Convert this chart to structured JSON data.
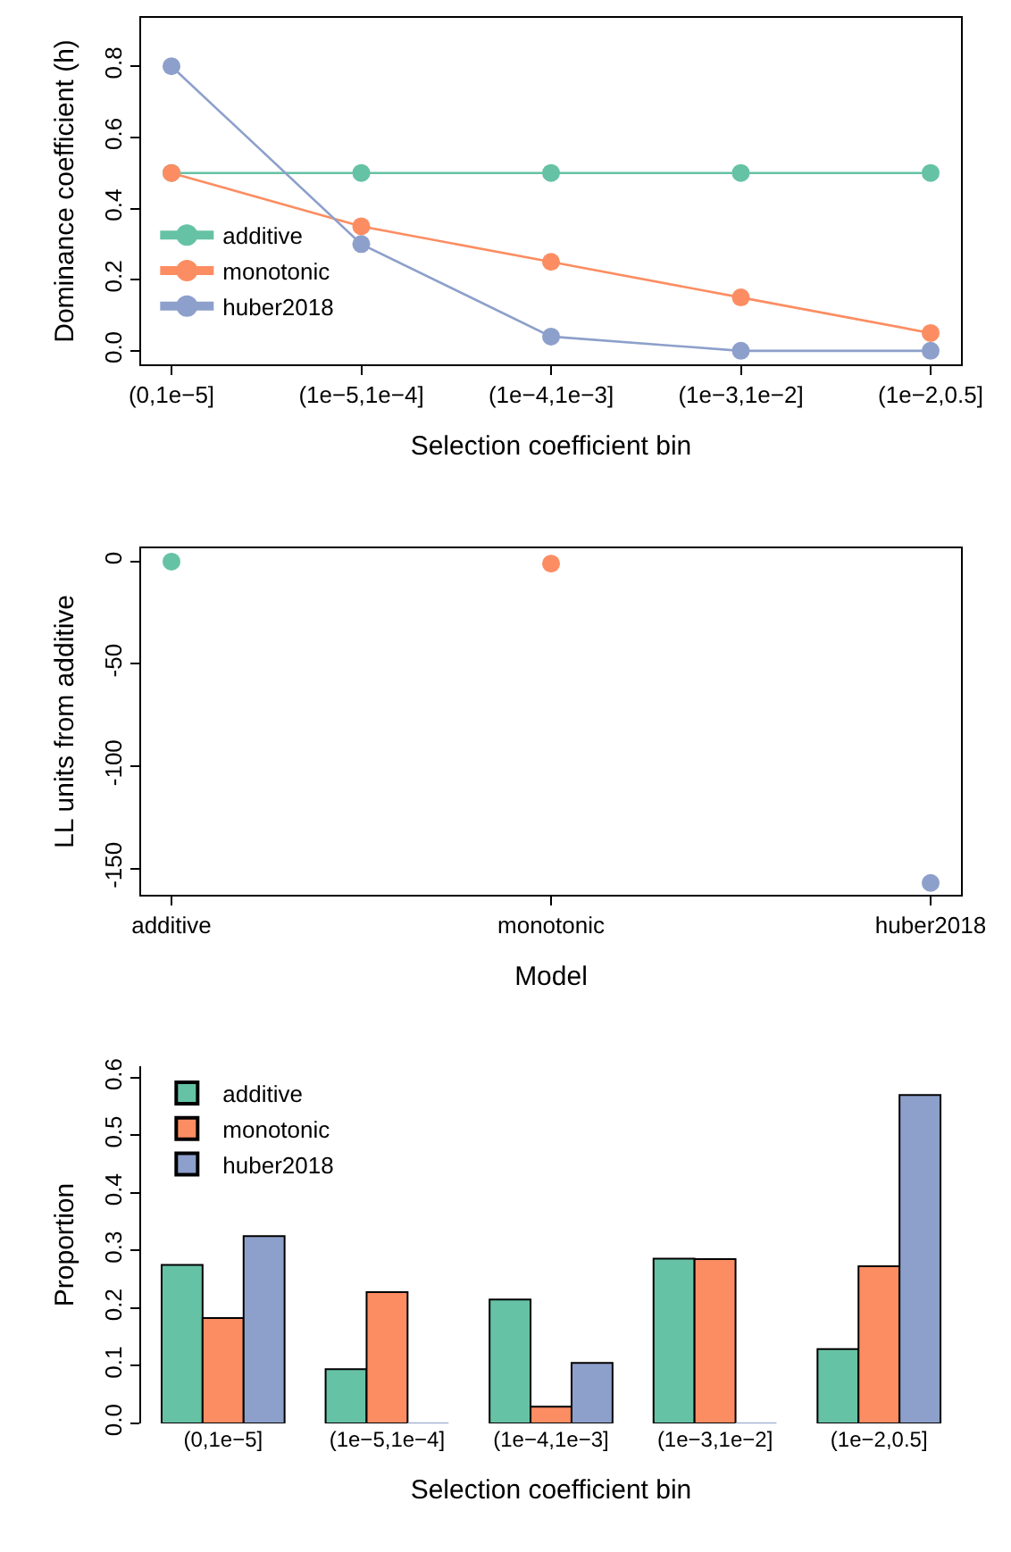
{
  "chart_data": [
    {
      "type": "line",
      "xlabel": "Selection coefficient bin",
      "ylabel": "Dominance coefficient (h)",
      "categories": [
        "(0,1e−5]",
        "(1e−5,1e−4]",
        "(1e−4,1e−3]",
        "(1e−3,1e−2]",
        "(1e−2,0.5]"
      ],
      "ylim": [
        -0.038,
        0.936
      ],
      "yticks": [
        {
          "value": 0,
          "label": "0.0"
        },
        0.2,
        0.4,
        0.6,
        0.8
      ],
      "marker": "circle",
      "line_style": "solid",
      "legend": "bottom left",
      "series": [
        {
          "name": "additive",
          "color": "#66c2a5",
          "values": [
            0.5,
            0.5,
            0.5,
            0.5,
            0.5
          ]
        },
        {
          "name": "monotonic",
          "color": "#fc8d62",
          "values": [
            0.5,
            0.35,
            0.25,
            0.15,
            0.05
          ]
        },
        {
          "name": "huber2018",
          "color": "#8da0cb",
          "values": [
            0.8,
            0.3,
            0.04,
            0,
            0
          ]
        }
      ]
    },
    {
      "type": "scatter",
      "xlabel": "Model",
      "ylabel": "LL units from additive",
      "categories": [
        "additive",
        "monotonic",
        "huber2018"
      ],
      "ylim": [
        -162.8,
        6.5
      ],
      "yticks": [
        0,
        -50,
        -100,
        -150
      ],
      "marker": "circle",
      "legend": false,
      "series": [
        {
          "colors": [
            "#66c2a5",
            "#fc8d62",
            "#8da0cb"
          ],
          "values": [
            0,
            -1,
            -157
          ]
        }
      ]
    },
    {
      "type": "bar",
      "xlabel": "Selection coefficient bin",
      "ylabel": "Proportion",
      "categories": [
        "(0,1e−5]",
        "(1e−5,1e−4]",
        "(1e−4,1e−3]",
        "(1e−3,1e−2]",
        "(1e−2,0.5]"
      ],
      "ylim": [
        0,
        0.62
      ],
      "yticks": [
        {
          "value": 0,
          "label": "0.0"
        },
        0.1,
        0.2,
        0.3,
        0.4,
        0.5,
        0.6
      ],
      "legend": "top left",
      "series": [
        {
          "name": "additive",
          "color": "#66c2a5",
          "values": [
            0.275,
            0.094,
            0.215,
            0.286,
            0.129
          ]
        },
        {
          "name": "monotonic",
          "color": "#fc8d62",
          "values": [
            0.183,
            0.228,
            0.029,
            0.285,
            0.273
          ]
        },
        {
          "name": "huber2018",
          "color": "#8da0cb",
          "values": [
            0.325,
            0,
            0.105,
            0,
            0.57
          ]
        }
      ]
    }
  ]
}
